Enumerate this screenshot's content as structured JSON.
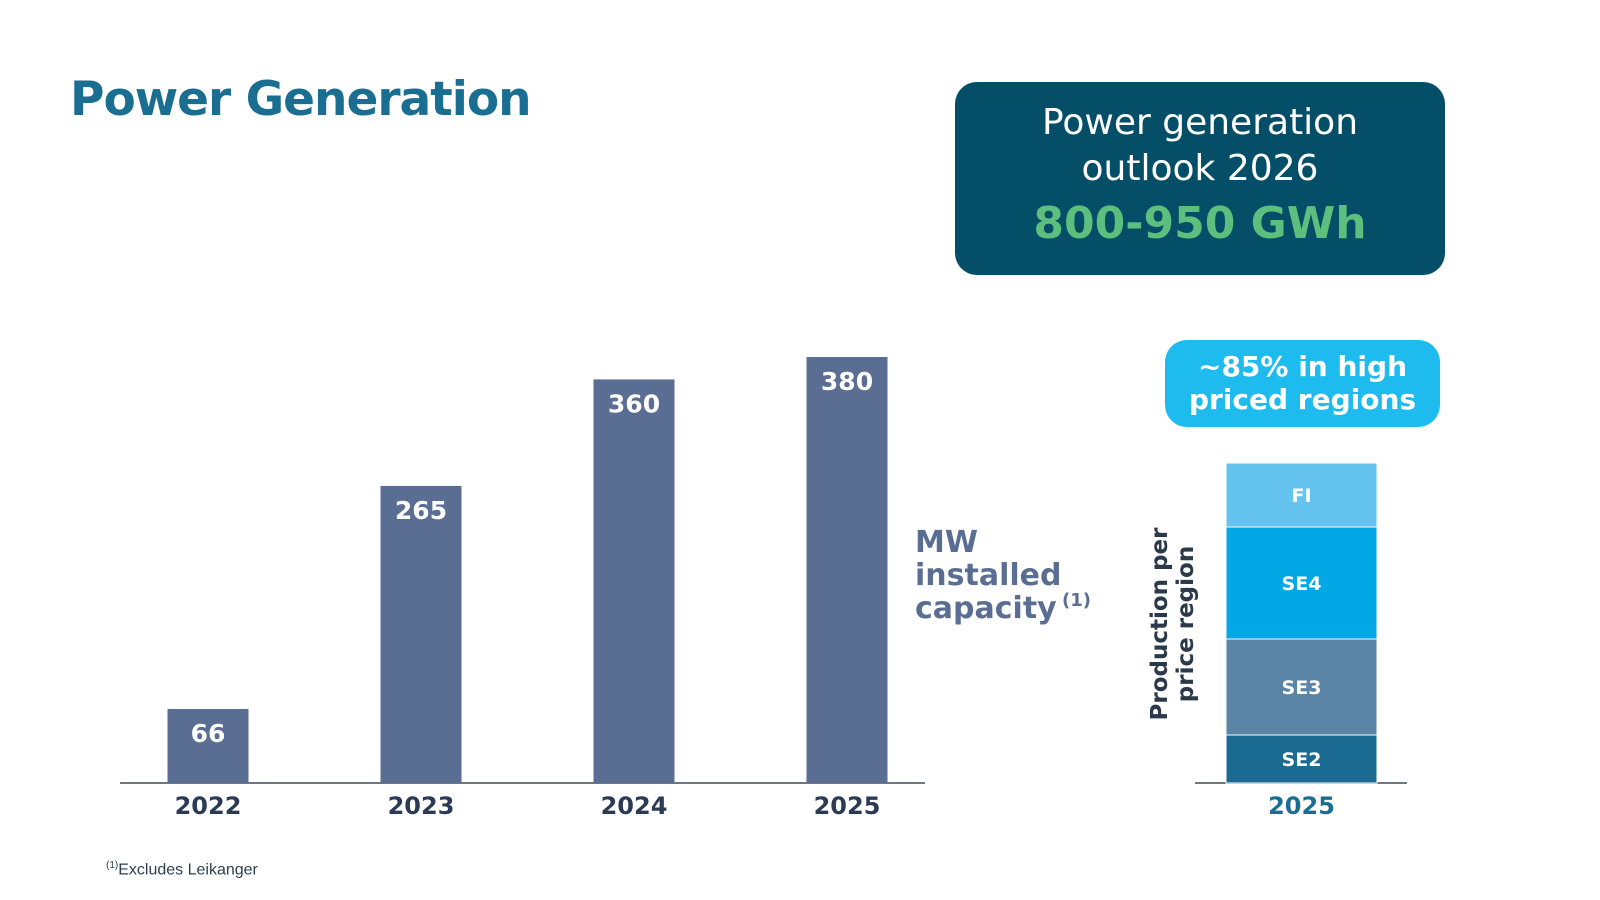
{
  "page": {
    "title": "Power Generation",
    "footnote_marker": "(1)",
    "footnote": "Excludes Leikanger"
  },
  "outlook": {
    "heading_line1": "Power generation",
    "heading_line2": "outlook 2026",
    "value": "800-950 GWh"
  },
  "pill": {
    "line1": "~85% in high",
    "line2": "priced regions"
  },
  "chart_data": [
    {
      "type": "bar",
      "categories": [
        "2022",
        "2023",
        "2024",
        "2025"
      ],
      "values": [
        66,
        265,
        360,
        380
      ],
      "ylim": [
        0,
        380
      ],
      "label_lines": [
        "MW",
        "installed",
        "capacity"
      ],
      "label_marker": "(1)",
      "color": "#5a6e94",
      "grid": false
    },
    {
      "type": "bar",
      "stacked": true,
      "categories": [
        "2025"
      ],
      "ylabel_lines": [
        "Production per",
        "price region"
      ],
      "series": [
        {
          "name": "SE2",
          "value": 9,
          "color": "#1b6a91"
        },
        {
          "name": "SE3",
          "value": 18,
          "color": "#5a85a6"
        },
        {
          "name": "SE4",
          "value": 21,
          "color": "#02a8e5"
        },
        {
          "name": "FI",
          "value": 12,
          "color": "#64c4ef"
        }
      ],
      "grid": false
    }
  ]
}
